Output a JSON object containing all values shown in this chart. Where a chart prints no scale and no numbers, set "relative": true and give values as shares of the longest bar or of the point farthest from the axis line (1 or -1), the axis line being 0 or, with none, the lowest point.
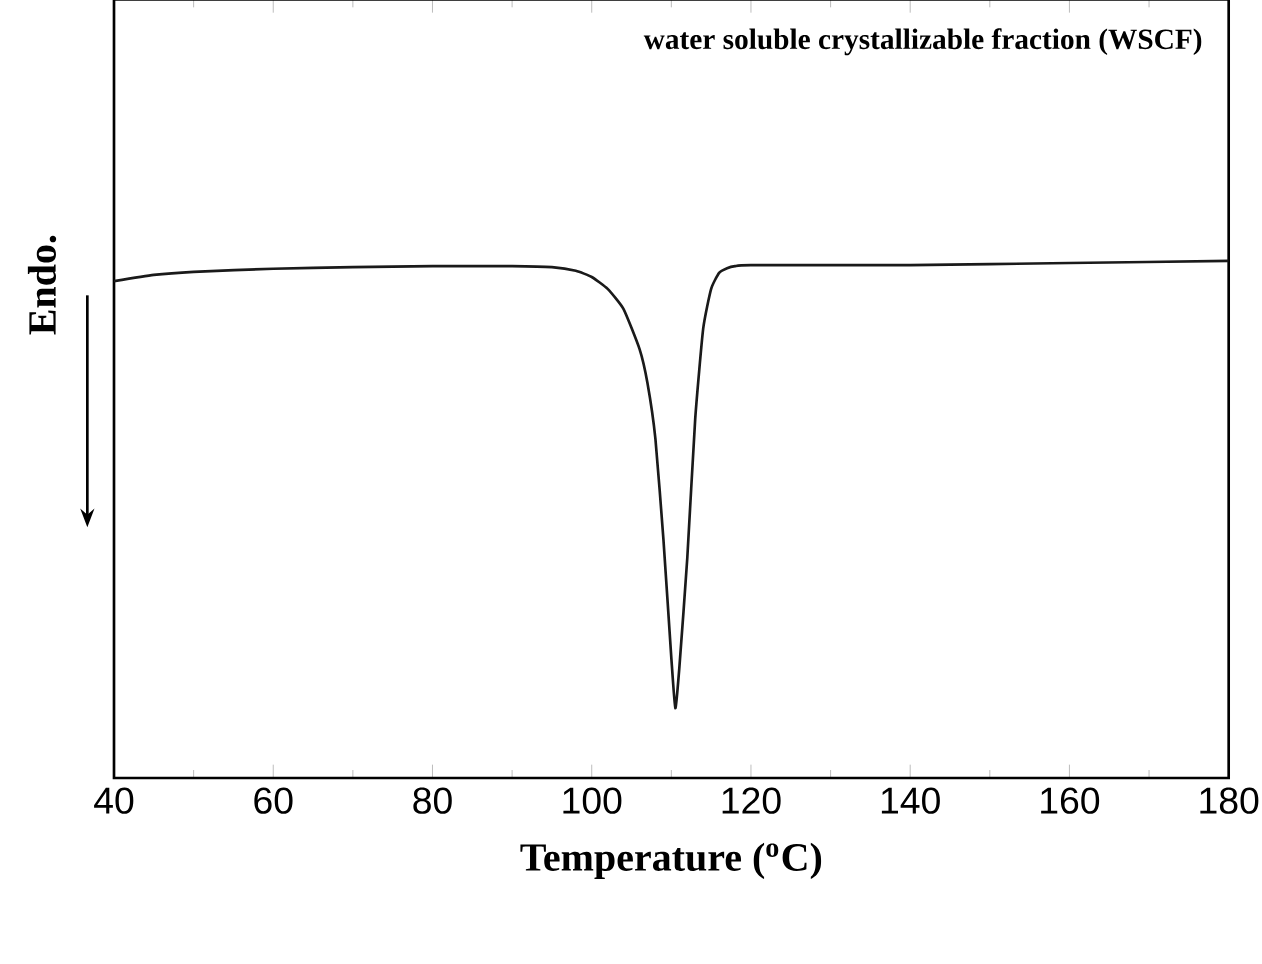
{
  "chart_data": {
    "type": "line",
    "relative": true,
    "xlabel": "Temperature ($^{o}$C)",
    "ylabel": "Endo.",
    "annotations": [
      "**water soluble crystallizable fraction (WSCF)**"
    ],
    "xlim": [
      40,
      180
    ],
    "xticks": [
      40,
      60,
      80,
      100,
      120,
      140,
      160,
      180
    ],
    "series": [
      {
        "color": "#1a1a1a",
        "x": [
          40,
          45,
          50,
          60,
          70,
          80,
          90,
          95,
          98,
          100,
          102,
          104,
          106,
          107,
          108,
          109,
          110,
          110.5,
          111,
          112,
          113,
          114,
          115,
          116,
          117,
          118,
          120,
          140,
          160,
          180
        ],
        "values": [
          0.961,
          0.973,
          0.979,
          0.985,
          0.988,
          0.99,
          0.99,
          0.988,
          0.981,
          0.969,
          0.946,
          0.907,
          0.83,
          0.764,
          0.656,
          0.463,
          0.232,
          0.135,
          0.212,
          0.425,
          0.695,
          0.869,
          0.946,
          0.977,
          0.986,
          0.99,
          0.992,
          0.992,
          0.996,
          1
        ]
      }
    ]
  }
}
